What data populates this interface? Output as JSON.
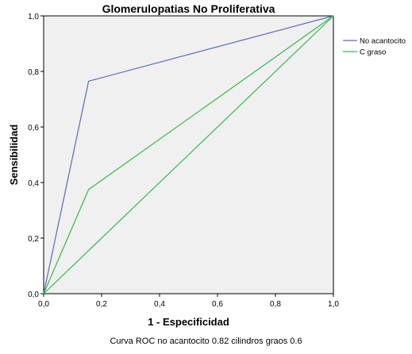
{
  "chart_data": {
    "type": "line",
    "title": "Glomerulopatias No Proliferativa",
    "xlabel": "1 - Especificidad",
    "ylabel": "Sensibilidad",
    "xlim": [
      0,
      1
    ],
    "ylim": [
      0,
      1
    ],
    "x_ticks": [
      "0,0",
      "0,2",
      "0,4",
      "0,6",
      "0,8",
      "1,0"
    ],
    "y_ticks": [
      "0,0",
      "0,2",
      "0,4",
      "0,6",
      "0,8",
      "1,0"
    ],
    "grid": false,
    "legend_position": "top-right",
    "series": [
      {
        "name": "No acantocito",
        "color": "#5a6bb5",
        "x": [
          0,
          0.155,
          1
        ],
        "y": [
          0,
          0.765,
          1
        ]
      },
      {
        "name": "C graso",
        "color": "#36b84a",
        "x": [
          0,
          0.155,
          1
        ],
        "y": [
          0,
          0.375,
          1
        ]
      },
      {
        "name": "",
        "color": "#36b84a",
        "x": [
          0,
          1
        ],
        "y": [
          0,
          1
        ]
      }
    ]
  },
  "caption": "Curva ROC  no acantocito 0.82  cilindros graos 0.6"
}
